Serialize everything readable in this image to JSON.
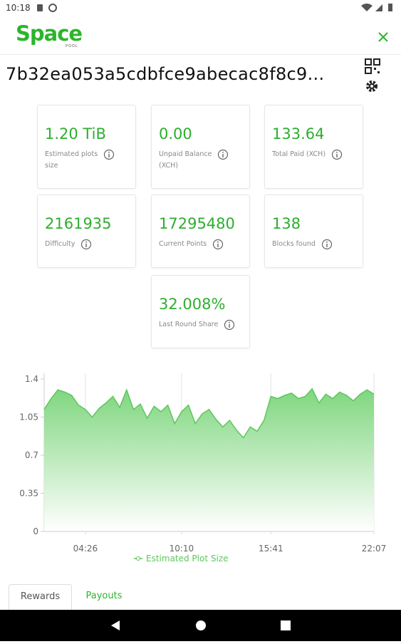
{
  "status_bar": {
    "time": "10:18"
  },
  "header": {
    "logo": "Space",
    "logo_sub": "POOL"
  },
  "address": "7b32ea053a5cdbfce9abecac8f8c9...",
  "cards": [
    {
      "value": "1.20 TiB",
      "label": "Estimated plots size"
    },
    {
      "value": "0.00",
      "label": "Unpaid Balance (XCH)"
    },
    {
      "value": "133.64",
      "label": "Total Paid (XCH)"
    },
    {
      "value": "2161935",
      "label": "Difficulty"
    },
    {
      "value": "17295480",
      "label": "Current Points"
    },
    {
      "value": "138",
      "label": "Blocks found"
    },
    {
      "value": "32.008%",
      "label": "Last Round Share"
    }
  ],
  "chart_data": {
    "type": "area",
    "categories": [
      null,
      null,
      null,
      null,
      null,
      null,
      "04:26",
      null,
      null,
      null,
      null,
      null,
      null,
      null,
      null,
      null,
      null,
      null,
      null,
      null,
      "10:10",
      null,
      null,
      null,
      null,
      null,
      null,
      null,
      null,
      null,
      null,
      null,
      null,
      "15:41",
      null,
      null,
      null,
      null,
      null,
      null,
      null,
      null,
      null,
      null,
      null,
      null,
      null,
      null,
      "22:07"
    ],
    "series": [
      {
        "name": "Estimated Plot Size",
        "color": "#5cc75c",
        "values": [
          1.12,
          1.22,
          1.3,
          1.28,
          1.25,
          1.16,
          1.12,
          1.05,
          1.13,
          1.18,
          1.24,
          1.14,
          1.3,
          1.12,
          1.17,
          1.04,
          1.15,
          1.1,
          1.16,
          0.99,
          1.1,
          1.16,
          0.99,
          1.08,
          1.12,
          1.03,
          0.96,
          1.02,
          0.93,
          0.86,
          0.96,
          0.92,
          1.02,
          1.24,
          1.22,
          1.25,
          1.27,
          1.22,
          1.24,
          1.31,
          1.18,
          1.26,
          1.22,
          1.28,
          1.25,
          1.2,
          1.26,
          1.3,
          1.26
        ]
      }
    ],
    "ylim": [
      0,
      1.4
    ],
    "yticks": [
      0,
      0.35,
      0.7,
      1.05,
      1.4
    ],
    "grid": true
  },
  "tabs": [
    "Rewards",
    "Payouts"
  ]
}
